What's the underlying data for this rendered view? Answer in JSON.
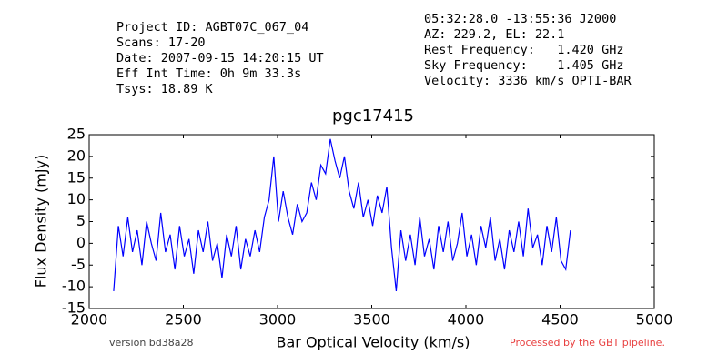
{
  "chart_data": {
    "type": "line",
    "title": "pgc17415",
    "header_left": [
      "Project ID: AGBT07C_067_04",
      "Scans: 17-20",
      "Date: 2007-09-15 14:20:15 UT",
      "Eff Int Time: 0h 9m 33.3s",
      "Tsys: 18.89 K"
    ],
    "header_right": [
      "05:32:28.0 -13:55:36 J2000",
      "AZ: 229.2, EL: 22.1",
      "Rest Frequency:   1.420 GHz",
      "Sky Frequency:    1.405 GHz",
      "Velocity: 3336 km/s OPTI-BAR"
    ],
    "footer_left": "version bd38a28",
    "footer_right": "Processed by the GBT pipeline.",
    "x_label": "Bar Optical Velocity (km/s)",
    "y_label": "Flux Density (mJy)",
    "xlim": [
      2000,
      5000
    ],
    "xticks": [
      2000,
      2500,
      3000,
      3500,
      4000,
      4500,
      5000
    ],
    "ylim": [
      -15,
      25
    ],
    "yticks": [
      -15,
      -10,
      -5,
      0,
      5,
      10,
      15,
      20,
      25
    ],
    "color": "#0000ff",
    "x": [
      2130,
      2155,
      2180,
      2205,
      2230,
      2255,
      2280,
      2305,
      2330,
      2355,
      2380,
      2405,
      2430,
      2455,
      2480,
      2505,
      2530,
      2555,
      2580,
      2605,
      2630,
      2655,
      2680,
      2705,
      2730,
      2755,
      2780,
      2805,
      2830,
      2855,
      2880,
      2905,
      2930,
      2955,
      2980,
      3005,
      3030,
      3055,
      3080,
      3105,
      3130,
      3155,
      3180,
      3205,
      3230,
      3255,
      3280,
      3305,
      3330,
      3355,
      3380,
      3405,
      3430,
      3455,
      3480,
      3505,
      3530,
      3555,
      3580,
      3605,
      3630,
      3655,
      3680,
      3705,
      3730,
      3755,
      3780,
      3805,
      3830,
      3855,
      3880,
      3905,
      3930,
      3955,
      3980,
      4005,
      4030,
      4055,
      4080,
      4105,
      4130,
      4155,
      4180,
      4205,
      4230,
      4255,
      4280,
      4305,
      4330,
      4355,
      4380,
      4405,
      4430,
      4455,
      4480,
      4505,
      4530,
      4555
    ],
    "values": [
      -11,
      4,
      -3,
      6,
      -2,
      3,
      -5,
      5,
      0,
      -4,
      7,
      -2,
      2,
      -6,
      4,
      -3,
      1,
      -7,
      3,
      -2,
      5,
      -4,
      0,
      -8,
      2,
      -3,
      4,
      -6,
      1,
      -3,
      3,
      -2,
      6,
      10,
      20,
      5,
      12,
      6,
      2,
      9,
      5,
      7,
      14,
      10,
      18,
      16,
      24,
      19,
      15,
      20,
      12,
      8,
      14,
      6,
      10,
      4,
      11,
      7,
      13,
      -1,
      -11,
      3,
      -4,
      2,
      -5,
      6,
      -3,
      1,
      -6,
      4,
      -2,
      5,
      -4,
      0,
      7,
      -3,
      2,
      -5,
      4,
      -1,
      6,
      -4,
      1,
      -6,
      3,
      -2,
      5,
      -3,
      8,
      -1,
      2,
      -5,
      4,
      -2,
      6,
      -4,
      -6,
      3
    ]
  }
}
